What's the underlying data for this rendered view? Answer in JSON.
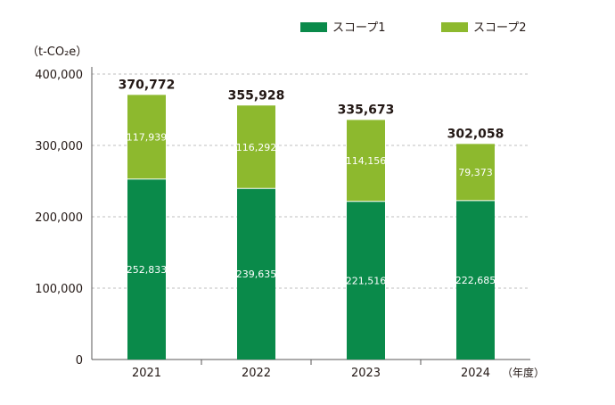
{
  "chart_data": {
    "type": "bar",
    "stacked": true,
    "unit_label": "（t-CO₂e）",
    "xlabel": "（年度）",
    "categories": [
      "2021",
      "2022",
      "2023",
      "2024"
    ],
    "series": [
      {
        "name": "スコープ1",
        "color": "#0a8a4a",
        "values": [
          252833,
          239635,
          221516,
          222685
        ]
      },
      {
        "name": "スコープ2",
        "color": "#8db92e",
        "values": [
          117939,
          116292,
          114156,
          79373
        ]
      }
    ],
    "segment_labels": [
      [
        "252,833",
        "239,635",
        "221,516",
        "222,685"
      ],
      [
        "117,939",
        "116,292",
        "114,156",
        "79,373"
      ]
    ],
    "totals": [
      370772,
      355928,
      335673,
      302058
    ],
    "total_labels": [
      "370,772",
      "355,928",
      "335,673",
      "302,058"
    ],
    "ylim": [
      0,
      400000
    ],
    "yticks": [
      0,
      100000,
      200000,
      300000,
      400000
    ],
    "ytick_labels": [
      "0",
      "100,000",
      "200,000",
      "300,000",
      "400,000"
    ],
    "grid": "dashed",
    "legend_position": "top-right"
  }
}
